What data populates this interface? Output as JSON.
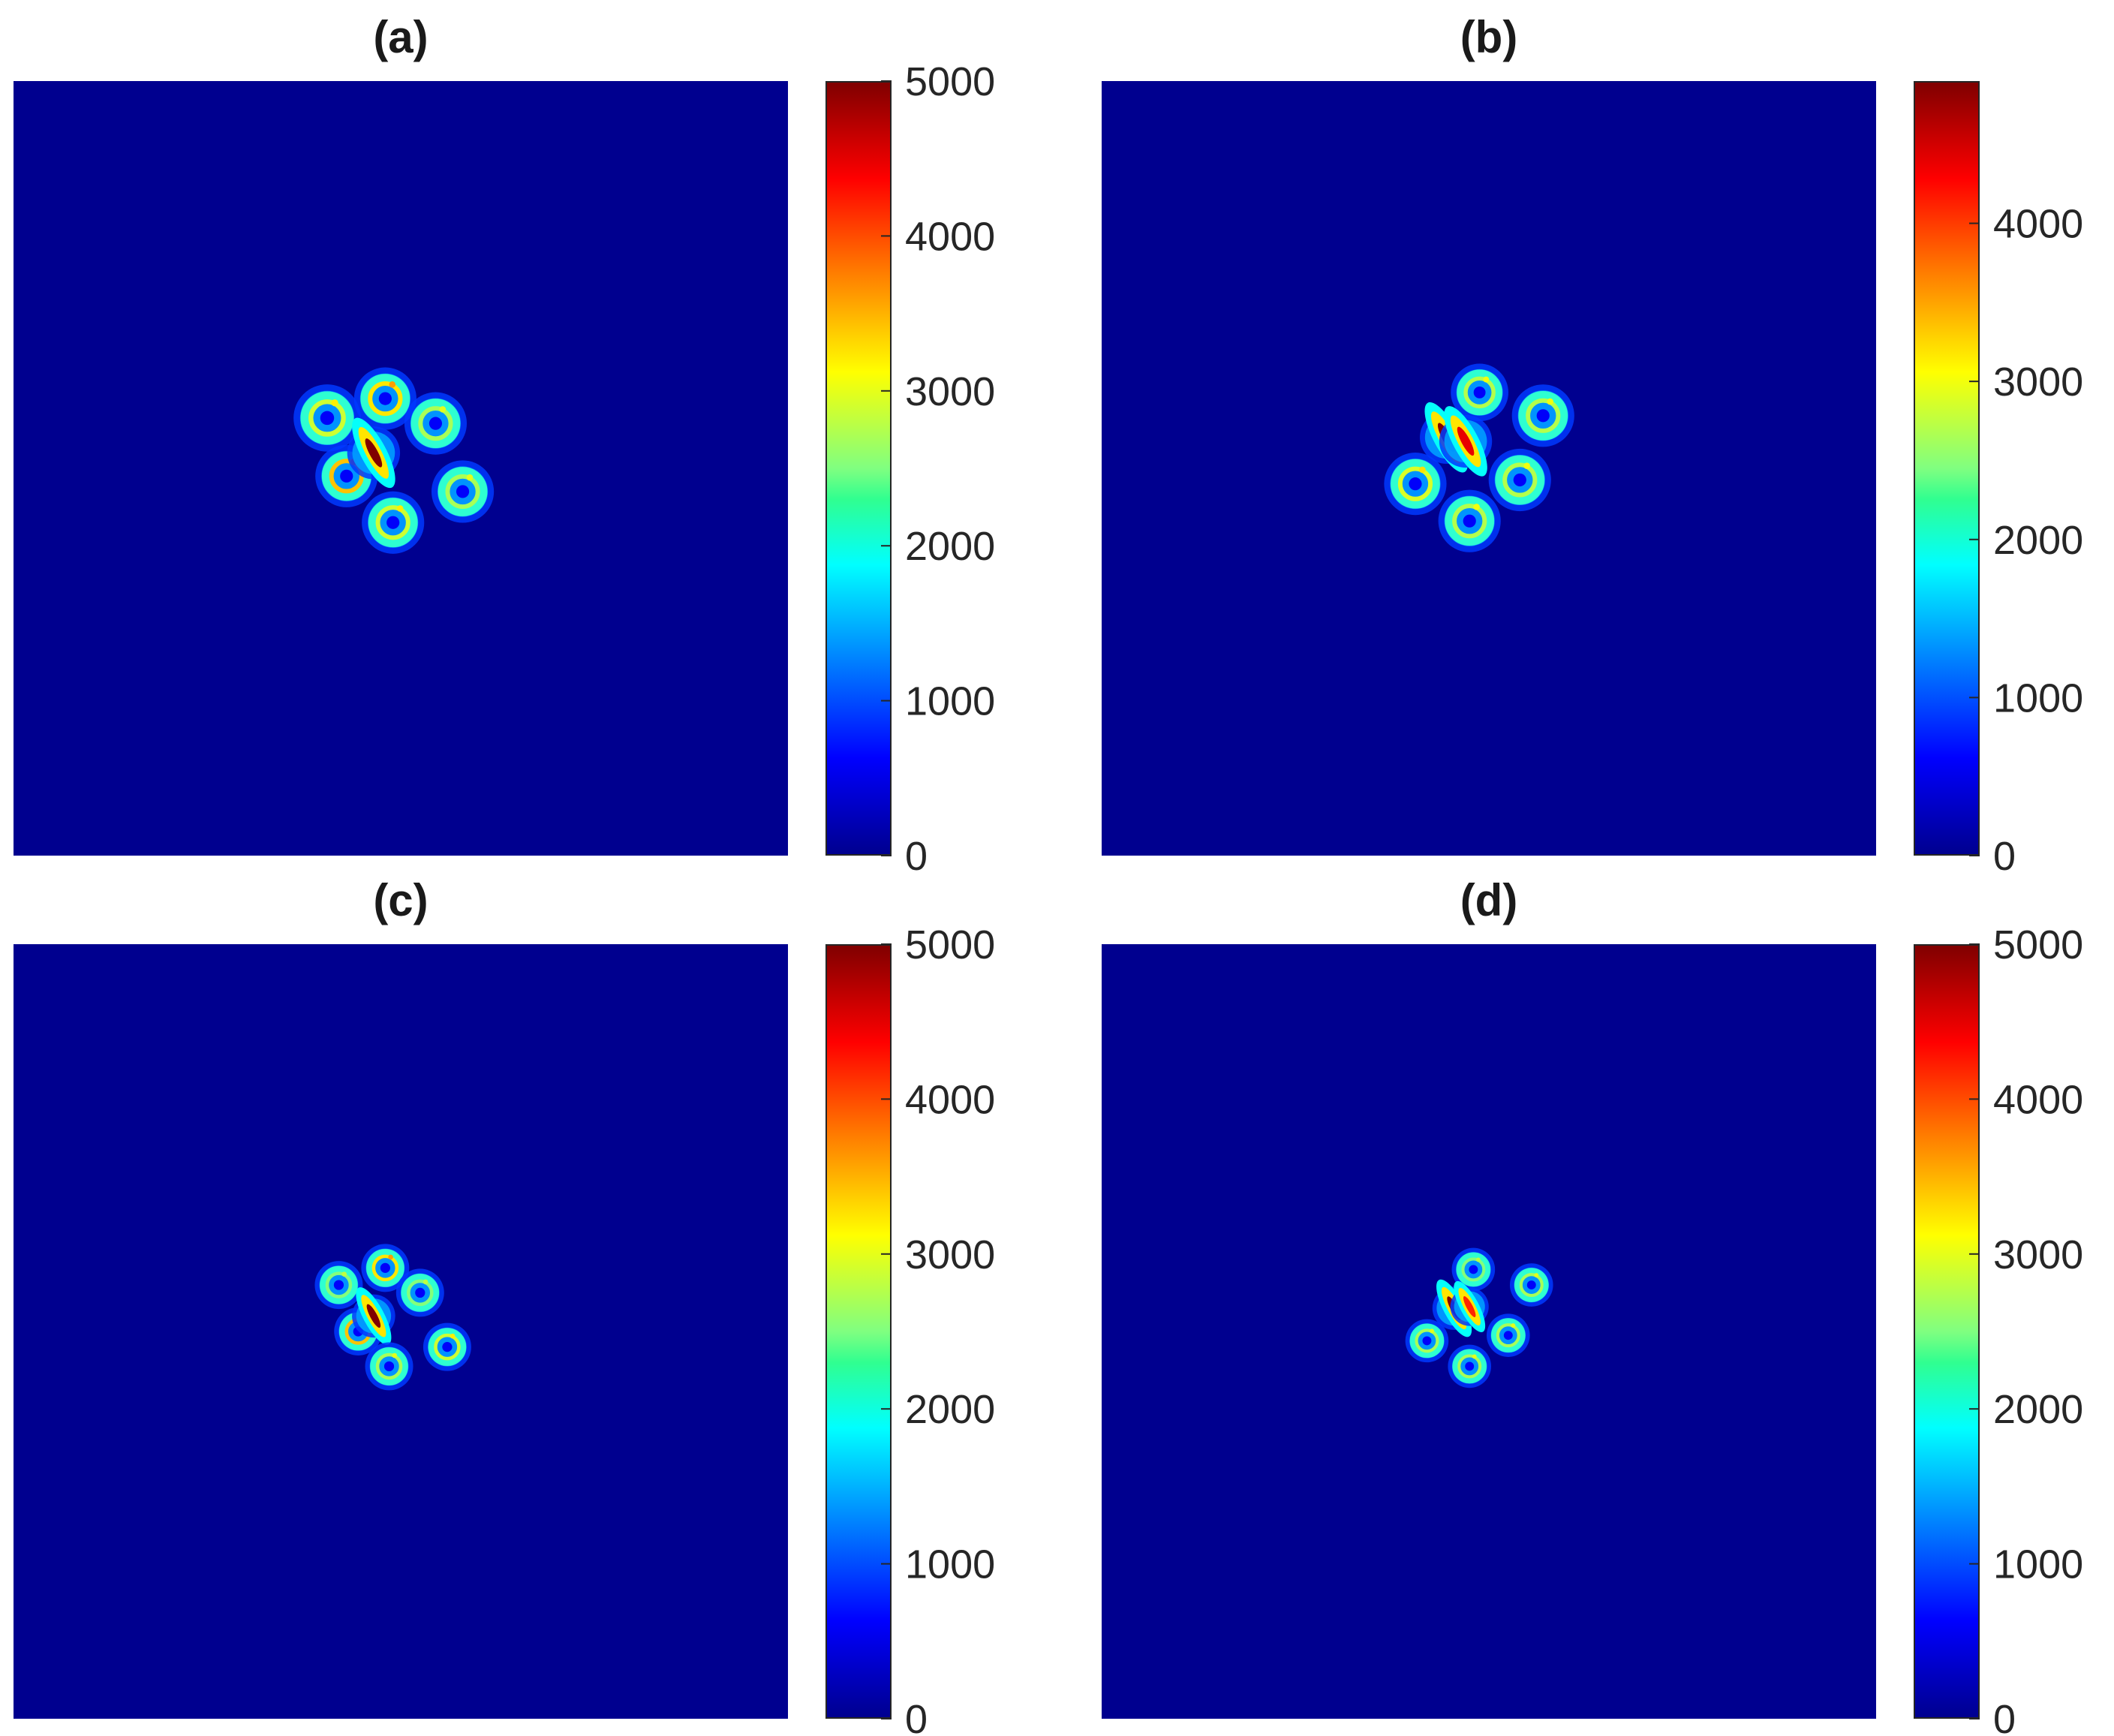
{
  "chart_data": [
    {
      "type": "heatmap",
      "title": "(a)",
      "colormap": "jet",
      "clim": [
        0,
        5000
      ],
      "colorbar_ticks": [
        "0",
        "1000",
        "2000",
        "3000",
        "4000",
        "5000"
      ],
      "colorbar_tick_values": [
        0,
        1000,
        2000,
        3000,
        4000,
        5000
      ],
      "spots": [
        {
          "x": 0.405,
          "y": 0.435,
          "r": 0.028,
          "peak": 3200,
          "shape": "ring"
        },
        {
          "x": 0.48,
          "y": 0.41,
          "r": 0.026,
          "peak": 3600,
          "shape": "ring"
        },
        {
          "x": 0.545,
          "y": 0.442,
          "r": 0.026,
          "peak": 3000,
          "shape": "ring"
        },
        {
          "x": 0.43,
          "y": 0.51,
          "r": 0.026,
          "peak": 3800,
          "shape": "ring"
        },
        {
          "x": 0.465,
          "y": 0.48,
          "r": 0.022,
          "peak": 5000,
          "shape": "streak"
        },
        {
          "x": 0.58,
          "y": 0.53,
          "r": 0.026,
          "peak": 3000,
          "shape": "ring"
        },
        {
          "x": 0.49,
          "y": 0.57,
          "r": 0.026,
          "peak": 3200,
          "shape": "ring"
        }
      ]
    },
    {
      "type": "heatmap",
      "title": "(b)",
      "colormap": "jet",
      "clim": [
        0,
        4900
      ],
      "colorbar_ticks": [
        "0",
        "1000",
        "2000",
        "3000",
        "4000"
      ],
      "colorbar_tick_values": [
        0,
        1000,
        2000,
        3000,
        4000
      ],
      "spots": [
        {
          "x": 0.488,
          "y": 0.402,
          "r": 0.024,
          "peak": 3000,
          "shape": "ring"
        },
        {
          "x": 0.57,
          "y": 0.432,
          "r": 0.026,
          "peak": 3000,
          "shape": "ring"
        },
        {
          "x": 0.445,
          "y": 0.46,
          "r": 0.022,
          "peak": 4900,
          "shape": "streak"
        },
        {
          "x": 0.47,
          "y": 0.465,
          "r": 0.022,
          "peak": 4400,
          "shape": "streak"
        },
        {
          "x": 0.405,
          "y": 0.52,
          "r": 0.026,
          "peak": 3200,
          "shape": "ring"
        },
        {
          "x": 0.54,
          "y": 0.515,
          "r": 0.026,
          "peak": 3000,
          "shape": "ring"
        },
        {
          "x": 0.475,
          "y": 0.568,
          "r": 0.026,
          "peak": 3000,
          "shape": "ring"
        }
      ]
    },
    {
      "type": "heatmap",
      "title": "(c)",
      "colormap": "jet",
      "clim": [
        0,
        5000
      ],
      "colorbar_ticks": [
        "0",
        "1000",
        "2000",
        "3000",
        "4000",
        "5000"
      ],
      "colorbar_tick_values": [
        0,
        1000,
        2000,
        3000,
        4000,
        5000
      ],
      "spots": [
        {
          "x": 0.42,
          "y": 0.44,
          "r": 0.02,
          "peak": 2800,
          "shape": "ring"
        },
        {
          "x": 0.48,
          "y": 0.418,
          "r": 0.02,
          "peak": 3600,
          "shape": "ring"
        },
        {
          "x": 0.525,
          "y": 0.45,
          "r": 0.02,
          "peak": 2800,
          "shape": "ring"
        },
        {
          "x": 0.445,
          "y": 0.5,
          "r": 0.02,
          "peak": 3800,
          "shape": "ring"
        },
        {
          "x": 0.465,
          "y": 0.48,
          "r": 0.018,
          "peak": 5000,
          "shape": "streak"
        },
        {
          "x": 0.56,
          "y": 0.52,
          "r": 0.02,
          "peak": 3200,
          "shape": "ring"
        },
        {
          "x": 0.485,
          "y": 0.545,
          "r": 0.02,
          "peak": 3000,
          "shape": "ring"
        }
      ]
    },
    {
      "type": "heatmap",
      "title": "(d)",
      "colormap": "jet",
      "clim": [
        0,
        5000
      ],
      "colorbar_ticks": [
        "0",
        "1000",
        "2000",
        "3000",
        "4000",
        "5000"
      ],
      "colorbar_tick_values": [
        0,
        1000,
        2000,
        3000,
        4000,
        5000
      ],
      "spots": [
        {
          "x": 0.48,
          "y": 0.42,
          "r": 0.018,
          "peak": 2800,
          "shape": "ring"
        },
        {
          "x": 0.555,
          "y": 0.44,
          "r": 0.018,
          "peak": 3000,
          "shape": "ring"
        },
        {
          "x": 0.455,
          "y": 0.47,
          "r": 0.018,
          "peak": 5000,
          "shape": "streak"
        },
        {
          "x": 0.475,
          "y": 0.468,
          "r": 0.016,
          "peak": 4200,
          "shape": "streak"
        },
        {
          "x": 0.42,
          "y": 0.512,
          "r": 0.018,
          "peak": 3000,
          "shape": "ring"
        },
        {
          "x": 0.525,
          "y": 0.505,
          "r": 0.018,
          "peak": 3000,
          "shape": "ring"
        },
        {
          "x": 0.475,
          "y": 0.545,
          "r": 0.018,
          "peak": 3000,
          "shape": "ring"
        }
      ]
    }
  ]
}
